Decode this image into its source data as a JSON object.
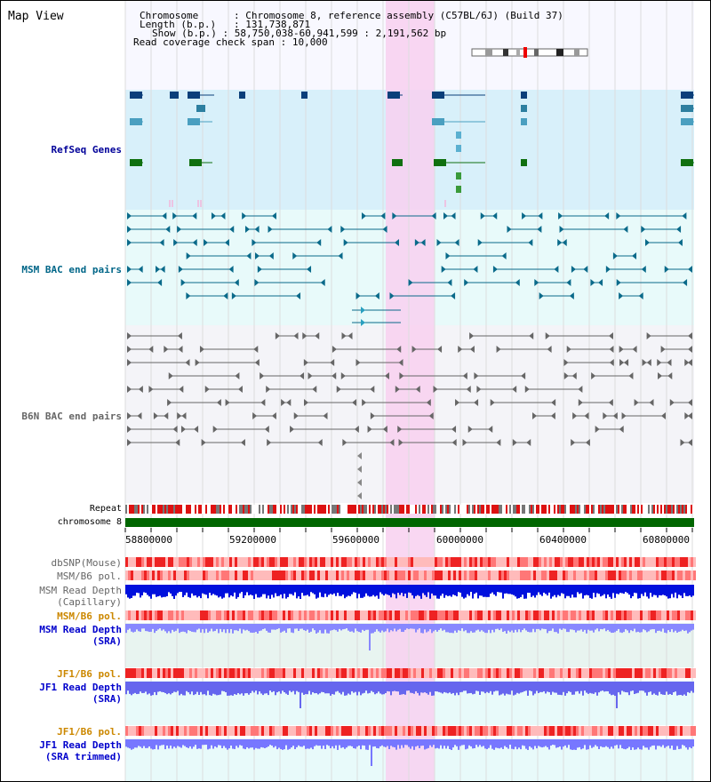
{
  "title": "Map View",
  "info": {
    "chromosome_key": "Chromosome",
    "chromosome_val": "Chromosome 8, reference assembly (C57BL/6J) (Build 37)",
    "length_key": "Length (b.p.)",
    "length_val": "131,738,871",
    "show_key": "Show (b.p.)",
    "show_val": "58,750,038-60,941,599 : 2,191,562 bp",
    "coverage_key": "Read coverage check span",
    "coverage_val": "10,000"
  },
  "tracks": {
    "refseq": "RefSeq Genes",
    "msm_bac": "MSM BAC end pairs",
    "b6n_bac": "B6N BAC end pairs",
    "repeat": "Repeat",
    "chromosome": "chromosome 8",
    "dbsnp": "dbSNP(Mouse)",
    "msm_b6_pol_1": "MSM/B6 pol.",
    "msm_read_depth_cap_1": "MSM Read Depth",
    "msm_read_depth_cap_2": "(Capillary)",
    "msm_b6_pol_2": "MSM/B6 pol.",
    "msm_read_depth_sra_1": "MSM Read Depth",
    "msm_read_depth_sra_2": "(SRA)",
    "jf1_b6_pol_1": "JF1/B6 pol.",
    "jf1_read_depth_sra_1": "JF1 Read Depth",
    "jf1_read_depth_sra_2": "(SRA)",
    "jf1_b6_pol_2": "JF1/B6 pol.",
    "jf1_read_depth_trim_1": "JF1 Read Depth",
    "jf1_read_depth_trim_2": "(SRA trimmed)"
  },
  "axis": {
    "ticks": [
      "58800000",
      "59200000",
      "59600000",
      "60000000",
      "60400000",
      "60800000"
    ]
  },
  "colors": {
    "refseq_label": "#000099",
    "msm_label": "#006688",
    "gray_label": "#666666",
    "orange_label": "#cc8800",
    "blue_label": "#0000cc",
    "highlight": "#f8d0f0",
    "chromosome_bar": "#006600"
  }
}
